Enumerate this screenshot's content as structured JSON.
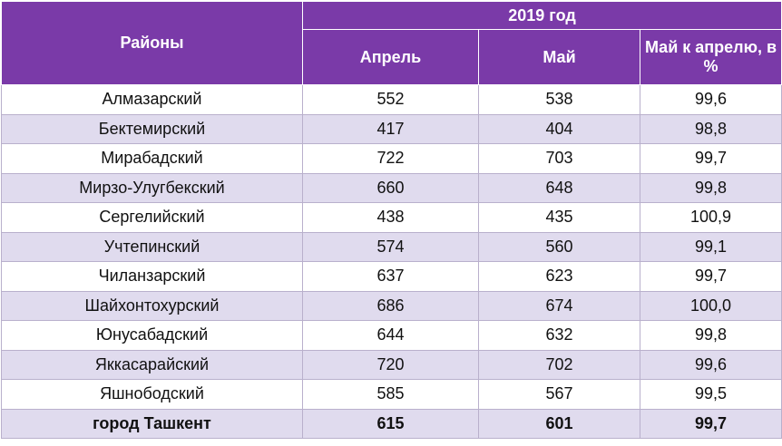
{
  "table": {
    "header": {
      "district": "Районы",
      "year": "2019 год",
      "columns": [
        "Апрель",
        "Май",
        "Май к апрелю, в %"
      ]
    },
    "rows": [
      [
        "Алмазарский",
        "552",
        "538",
        "99,6"
      ],
      [
        "Бектемирский",
        "417",
        "404",
        "98,8"
      ],
      [
        "Мирабадский",
        "722",
        "703",
        "99,7"
      ],
      [
        "Мирзо-Улугбекский",
        "660",
        "648",
        "99,8"
      ],
      [
        "Сергелийский",
        "438",
        "435",
        "100,9"
      ],
      [
        "Учтепинский",
        "574",
        "560",
        "99,1"
      ],
      [
        "Чиланзарский",
        "637",
        "623",
        "99,7"
      ],
      [
        "Шайхонтохурский",
        "686",
        "674",
        "100,0"
      ],
      [
        "Юнусабадский",
        "644",
        "632",
        "99,8"
      ],
      [
        "Яккасарайский",
        "720",
        "702",
        "99,6"
      ],
      [
        "Яшнободский",
        "585",
        "567",
        "99,5"
      ],
      [
        "город Ташкент",
        "615",
        "601",
        "99,7"
      ]
    ]
  }
}
